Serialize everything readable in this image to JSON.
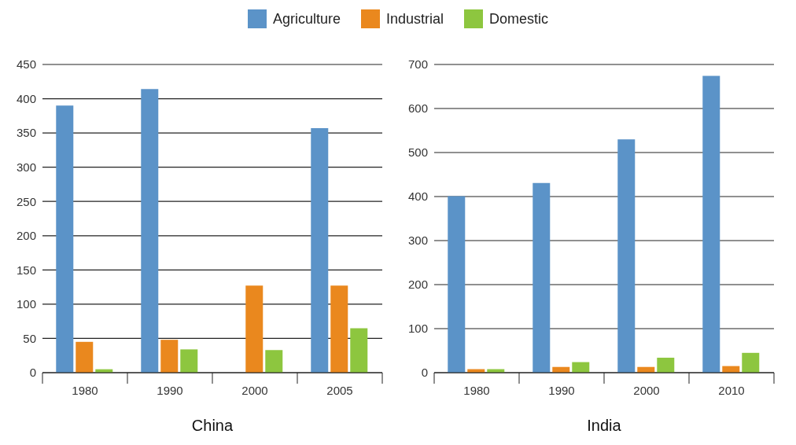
{
  "chart_data": [
    {
      "type": "bar",
      "categories": [
        "1980",
        "1990",
        "2000",
        "2005"
      ],
      "xlabel": "China",
      "ylim": [
        0,
        450
      ],
      "yticks": [
        0,
        50,
        100,
        150,
        200,
        250,
        300,
        350,
        400,
        450
      ],
      "grid": "y",
      "legend": "top",
      "series": [
        {
          "name": "Agriculture",
          "color": "#5b93c8",
          "values": [
            390,
            414,
            null,
            357
          ]
        },
        {
          "name": "Industrial",
          "color": "#ea881e",
          "values": [
            45,
            48,
            127,
            127
          ]
        },
        {
          "name": "Domestic",
          "color": "#8dc63f",
          "values": [
            5,
            34,
            33,
            65
          ]
        }
      ]
    },
    {
      "type": "bar",
      "categories": [
        "1980",
        "1990",
        "2000",
        "2010"
      ],
      "xlabel": "India",
      "ylim": [
        0,
        700
      ],
      "yticks": [
        0,
        100,
        200,
        300,
        400,
        500,
        600,
        700
      ],
      "grid": "y",
      "series": [
        {
          "color": "#5b93c8",
          "values": [
            401,
            431,
            530,
            674
          ]
        },
        {
          "color": "#ea881e",
          "values": [
            8,
            13,
            13,
            15
          ]
        },
        {
          "color": "#8dc63f",
          "values": [
            8,
            24,
            34,
            45
          ]
        }
      ]
    }
  ]
}
